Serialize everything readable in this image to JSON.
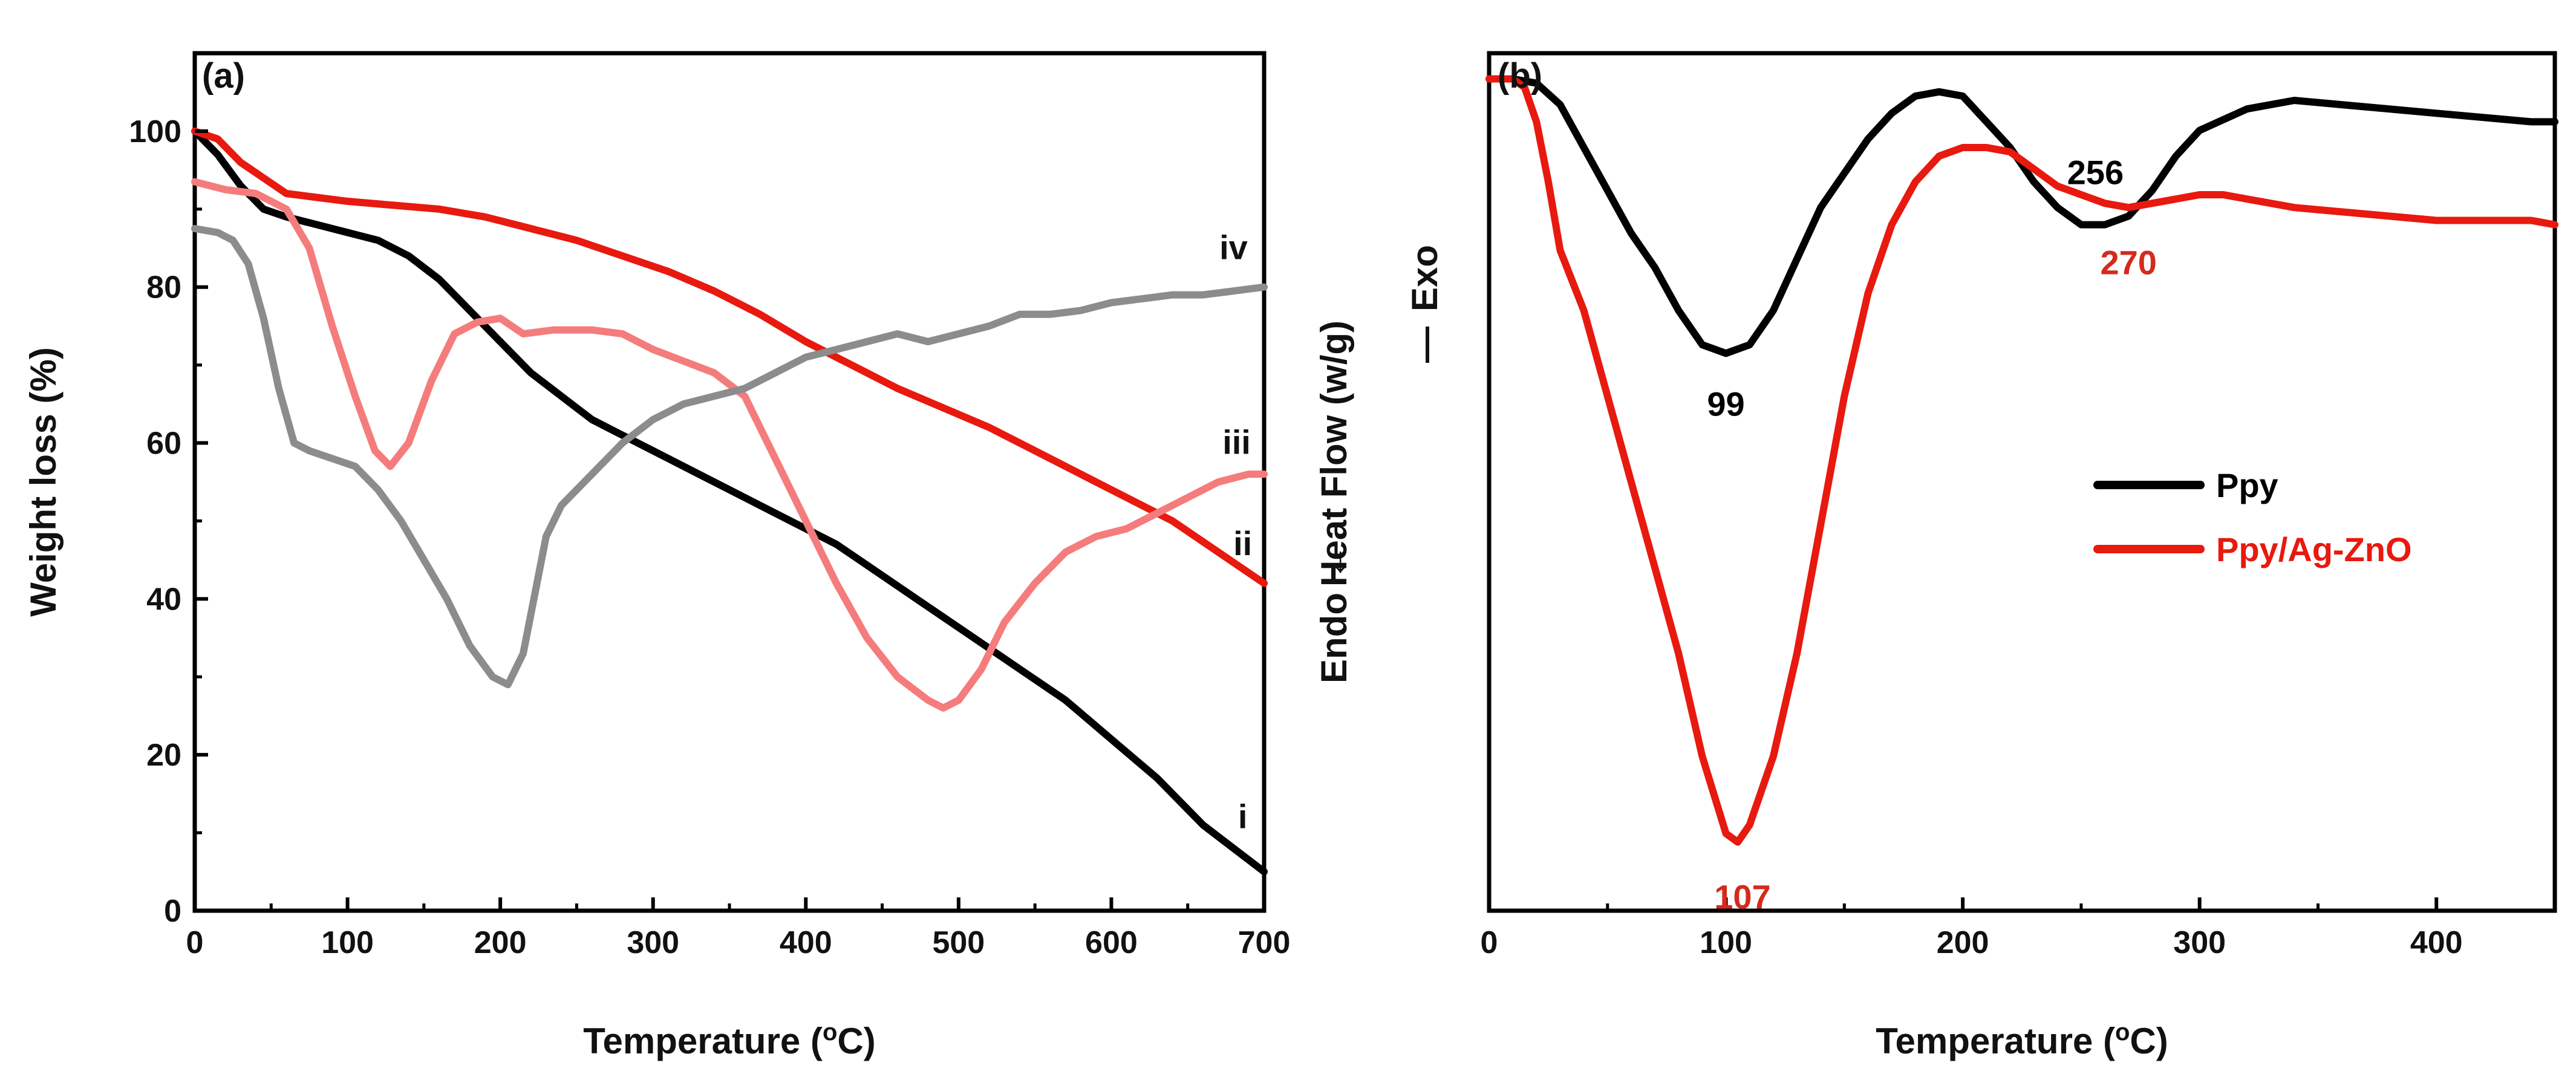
{
  "chart_data": [
    {
      "type": "line",
      "panel_label": "(a)",
      "xlabel": "Temperature (",
      "xlabel_sup": "o",
      "xlabel_end": "C)",
      "ylabel": "Weight loss (%)",
      "xlim": [
        0,
        700
      ],
      "ylim": [
        0,
        110
      ],
      "xticks": [
        0,
        100,
        200,
        300,
        400,
        500,
        600,
        700
      ],
      "yticks": [
        0,
        20,
        40,
        60,
        80,
        100
      ],
      "series": [
        {
          "name": "i",
          "color": "#000000",
          "x": [
            0,
            15,
            30,
            45,
            60,
            80,
            100,
            120,
            140,
            160,
            180,
            200,
            220,
            240,
            260,
            280,
            300,
            330,
            360,
            390,
            420,
            450,
            480,
            510,
            540,
            570,
            600,
            630,
            660,
            680,
            700
          ],
          "y": [
            100,
            97,
            93,
            90,
            89,
            88,
            87,
            86,
            84,
            81,
            77,
            73,
            69,
            66,
            63,
            61,
            59,
            56,
            53,
            50,
            47,
            43,
            39,
            35,
            31,
            27,
            22,
            17,
            11,
            8,
            5
          ]
        },
        {
          "name": "ii",
          "color": "#e8190f",
          "x": [
            0,
            15,
            30,
            45,
            60,
            80,
            100,
            130,
            160,
            190,
            220,
            250,
            280,
            310,
            340,
            370,
            400,
            430,
            460,
            490,
            520,
            550,
            580,
            610,
            640,
            670,
            700
          ],
          "y": [
            100,
            99,
            96,
            94,
            92,
            91.5,
            91,
            90.5,
            90,
            89,
            87.5,
            86,
            84,
            82,
            79.5,
            76.5,
            73,
            70,
            67,
            64.5,
            62,
            59,
            56,
            53,
            50,
            46,
            42
          ]
        },
        {
          "name": "iii",
          "color": "#f57c7c",
          "x": [
            0,
            20,
            40,
            60,
            75,
            90,
            105,
            118,
            128,
            140,
            155,
            170,
            185,
            200,
            215,
            235,
            260,
            280,
            300,
            320,
            340,
            360,
            380,
            400,
            420,
            440,
            460,
            480,
            490,
            500,
            515,
            530,
            550,
            570,
            590,
            610,
            630,
            650,
            670,
            690,
            700
          ],
          "y": [
            93.5,
            92.5,
            92,
            90,
            85,
            75,
            66,
            59,
            57,
            60,
            68,
            74,
            75.5,
            76,
            74,
            74.5,
            74.5,
            74,
            72,
            70.5,
            69,
            66,
            58,
            50,
            42,
            35,
            30,
            27,
            26,
            27,
            31,
            37,
            42,
            46,
            48,
            49,
            51,
            53,
            55,
            56,
            56
          ]
        },
        {
          "name": "iv",
          "color": "#8c8c8c",
          "x": [
            0,
            15,
            25,
            35,
            45,
            55,
            65,
            75,
            90,
            105,
            120,
            135,
            150,
            165,
            180,
            195,
            205,
            215,
            222,
            230,
            240,
            250,
            265,
            280,
            300,
            320,
            340,
            360,
            380,
            400,
            420,
            440,
            460,
            480,
            500,
            520,
            540,
            560,
            580,
            600,
            620,
            640,
            660,
            680,
            700
          ],
          "y": [
            87.5,
            87,
            86,
            83,
            76,
            67,
            60,
            59,
            58,
            57,
            54,
            50,
            45,
            40,
            34,
            30,
            29,
            33,
            40,
            48,
            52,
            54,
            57,
            60,
            63,
            65,
            66,
            67,
            69,
            71,
            72,
            73,
            74,
            73,
            74,
            75,
            76.5,
            76.5,
            77,
            78,
            78.5,
            79,
            79,
            79.5,
            80
          ]
        }
      ],
      "annotations": [
        {
          "text": "i",
          "x": 686,
          "y": 12
        },
        {
          "text": "ii",
          "x": 686,
          "y": 47
        },
        {
          "text": "iii",
          "x": 682,
          "y": 60
        },
        {
          "text": "iv",
          "x": 680,
          "y": 85
        }
      ]
    },
    {
      "type": "line",
      "panel_label": "(b)",
      "xlabel": "Temperature (",
      "xlabel_sup": "o",
      "xlabel_end": "C)",
      "ylabel_parts": [
        "Endo",
        "Heat Flow (w/g)",
        "Exo"
      ],
      "ylabel_arrow_left": "←",
      "ylabel_arrow_right": "—",
      "xlim": [
        0,
        450
      ],
      "ylim": [
        0,
        100
      ],
      "xticks": [
        0,
        100,
        200,
        300,
        400
      ],
      "series": [
        {
          "name": "Ppy",
          "color": "#000000",
          "x": [
            0,
            10,
            20,
            30,
            40,
            50,
            60,
            70,
            80,
            90,
            100,
            110,
            120,
            130,
            140,
            150,
            160,
            170,
            180,
            190,
            200,
            210,
            220,
            230,
            240,
            250,
            260,
            270,
            280,
            290,
            300,
            320,
            340,
            360,
            380,
            400,
            420,
            440,
            450
          ],
          "y": [
            97,
            97,
            96.5,
            94,
            89,
            84,
            79,
            75,
            70,
            66,
            65,
            66,
            70,
            76,
            82,
            86,
            90,
            93,
            95,
            95.5,
            95,
            92,
            89,
            85,
            82,
            80,
            80,
            81,
            84,
            88,
            91,
            93.5,
            94.5,
            94,
            93.5,
            93,
            92.5,
            92,
            92
          ]
        },
        {
          "name": "Ppy/Ag-ZnO",
          "color": "#e8190f",
          "x": [
            0,
            10,
            15,
            20,
            25,
            30,
            40,
            50,
            60,
            70,
            80,
            90,
            100,
            105,
            110,
            120,
            130,
            140,
            150,
            160,
            170,
            180,
            190,
            200,
            210,
            220,
            230,
            240,
            250,
            260,
            270,
            280,
            290,
            300,
            310,
            320,
            340,
            360,
            380,
            400,
            420,
            440,
            450
          ],
          "y": [
            97,
            97,
            96,
            92,
            85,
            77,
            70,
            60,
            50,
            40,
            30,
            18,
            9,
            8,
            10,
            18,
            30,
            45,
            60,
            72,
            80,
            85,
            88,
            89,
            89,
            88.5,
            86.5,
            84.5,
            83.5,
            82.5,
            82,
            82.5,
            83,
            83.5,
            83.5,
            83,
            82,
            81.5,
            81,
            80.5,
            80.5,
            80.5,
            80
          ]
        }
      ],
      "annotations": [
        {
          "text": "99",
          "x": 100,
          "y": 59,
          "color": "#000000"
        },
        {
          "text": "256",
          "x": 256,
          "y": 86,
          "color": "#000000"
        },
        {
          "text": "270",
          "x": 270,
          "y": 75.5,
          "color": "#d52a1d"
        },
        {
          "text": "107",
          "x": 107,
          "y": 1.5,
          "color": "#d52a1d"
        }
      ],
      "legend": [
        {
          "label": "Ppy",
          "color": "#000000"
        },
        {
          "label": "Ppy/Ag-ZnO",
          "color": "#e8190f"
        }
      ]
    }
  ]
}
